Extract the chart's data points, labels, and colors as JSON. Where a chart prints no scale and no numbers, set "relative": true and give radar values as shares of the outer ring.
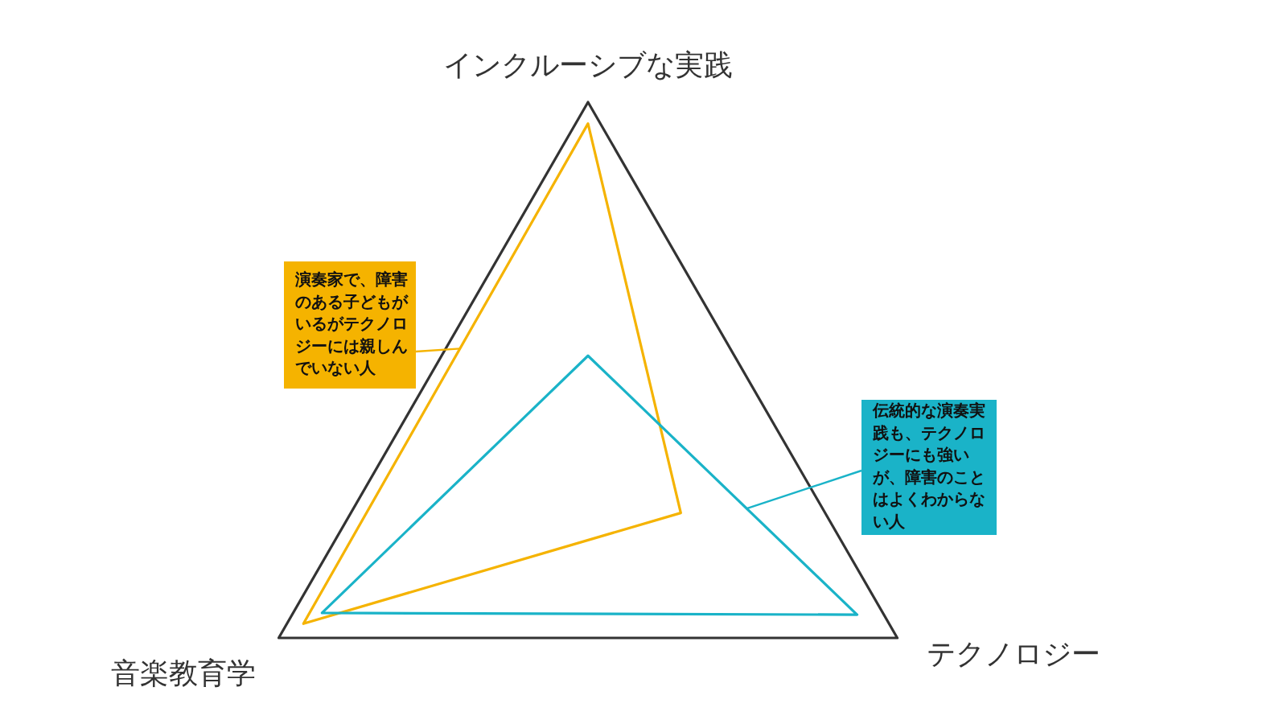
{
  "chart_data": {
    "type": "radar",
    "relative": true,
    "categories": [
      "インクルーシブな実践",
      "テクノロジー",
      "音楽教育学"
    ],
    "series": [
      {
        "name": "演奏家で、障害のある子どもがいるがテクノロジーには親しんでいない人",
        "color": "#f5b300",
        "values": [
          0.94,
          0.3,
          0.92
        ]
      },
      {
        "name": "伝統的な演奏実践も、テクノロジーにも強いが、障害のことはよくわからない人",
        "color": "#1ab3c8",
        "values": [
          0.29,
          0.87,
          0.86
        ]
      }
    ]
  }
}
